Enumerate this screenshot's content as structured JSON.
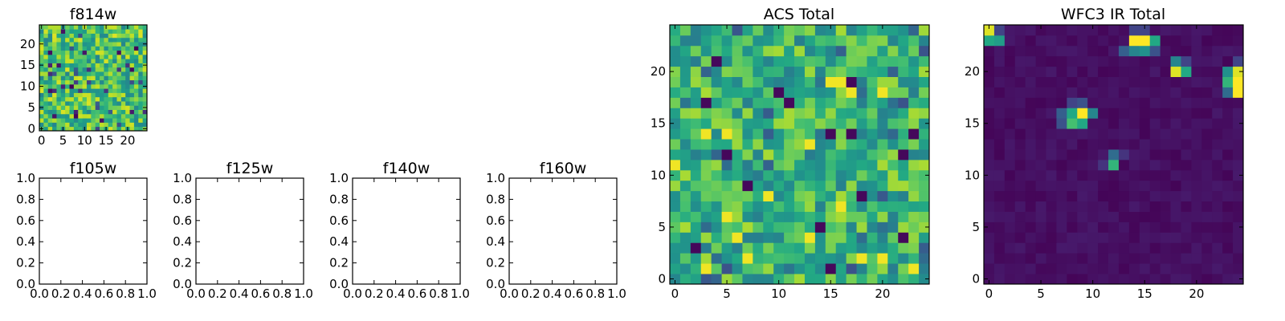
{
  "panels": {
    "f814w": {
      "title": "f814w"
    },
    "f105w": {
      "title": "f105w"
    },
    "f125w": {
      "title": "f125w"
    },
    "f140w": {
      "title": "f140w"
    },
    "f160w": {
      "title": "f160w"
    },
    "acs_total": {
      "title": "ACS Total"
    },
    "wfc3_total": {
      "title": "WFC3 IR Total"
    }
  },
  "chart_data": [
    {
      "type": "heatmap",
      "id": "f814w",
      "title": "f814w",
      "grid_size": [
        25,
        25
      ],
      "xticks": [
        0,
        5,
        10,
        15,
        20
      ],
      "yticks": [
        0,
        5,
        10,
        15,
        20
      ],
      "colormap": "viridis",
      "value_note": "noise-like field, mostly mid-high (green/yellow) with scattered dark pixels"
    },
    {
      "type": "empty",
      "id": "f105w",
      "title": "f105w",
      "xlim": [
        0.0,
        1.0
      ],
      "ylim": [
        0.0,
        1.0
      ],
      "xticks": [
        "0.0",
        "0.2",
        "0.4",
        "0.6",
        "0.8",
        "1.0"
      ],
      "yticks": [
        "0.0",
        "0.2",
        "0.4",
        "0.6",
        "0.8",
        "1.0"
      ]
    },
    {
      "type": "empty",
      "id": "f125w",
      "title": "f125w",
      "xlim": [
        0.0,
        1.0
      ],
      "ylim": [
        0.0,
        1.0
      ],
      "xticks": [
        "0.0",
        "0.2",
        "0.4",
        "0.6",
        "0.8",
        "1.0"
      ],
      "yticks": [
        "0.0",
        "0.2",
        "0.4",
        "0.6",
        "0.8",
        "1.0"
      ]
    },
    {
      "type": "empty",
      "id": "f140w",
      "title": "f140w",
      "xlim": [
        0.0,
        1.0
      ],
      "ylim": [
        0.0,
        1.0
      ],
      "xticks": [
        "0.0",
        "0.2",
        "0.4",
        "0.6",
        "0.8",
        "1.0"
      ],
      "yticks": [
        "0.0",
        "0.2",
        "0.4",
        "0.6",
        "0.8",
        "1.0"
      ]
    },
    {
      "type": "empty",
      "id": "f160w",
      "title": "f160w",
      "xlim": [
        0.0,
        1.0
      ],
      "ylim": [
        0.0,
        1.0
      ],
      "xticks": [
        "0.0",
        "0.2",
        "0.4",
        "0.6",
        "0.8",
        "1.0"
      ],
      "yticks": [
        "0.0",
        "0.2",
        "0.4",
        "0.6",
        "0.8",
        "1.0"
      ]
    },
    {
      "type": "heatmap",
      "id": "acs_total",
      "title": "ACS Total",
      "grid_size": [
        25,
        25
      ],
      "xticks": [
        0,
        5,
        10,
        15,
        20
      ],
      "yticks": [
        0,
        5,
        10,
        15,
        20
      ],
      "colormap": "viridis",
      "value_note": "noise-like field, mostly green/yellow with a few dark pixels",
      "dark_pixels": [
        [
          4,
          21
        ],
        [
          10,
          18
        ],
        [
          17,
          19
        ],
        [
          3,
          17
        ],
        [
          11,
          17
        ],
        [
          15,
          14
        ],
        [
          17,
          14
        ],
        [
          23,
          14
        ],
        [
          5,
          12
        ],
        [
          22,
          12
        ],
        [
          7,
          9
        ],
        [
          18,
          8
        ],
        [
          14,
          5
        ],
        [
          22,
          4
        ],
        [
          2,
          3
        ],
        [
          15,
          1
        ]
      ],
      "bright_pixels": [
        [
          15,
          19
        ],
        [
          16,
          19
        ],
        [
          17,
          18
        ],
        [
          20,
          18
        ],
        [
          3,
          14
        ],
        [
          5,
          14
        ],
        [
          13,
          13
        ],
        [
          0,
          11
        ],
        [
          5,
          6
        ],
        [
          9,
          8
        ],
        [
          16,
          7
        ],
        [
          6,
          4
        ],
        [
          13,
          4
        ],
        [
          7,
          2
        ],
        [
          18,
          2
        ],
        [
          20,
          2
        ],
        [
          23,
          1
        ],
        [
          3,
          1
        ]
      ]
    },
    {
      "type": "heatmap",
      "id": "wfc3_total",
      "title": "WFC3 IR Total",
      "grid_size": [
        25,
        25
      ],
      "xticks": [
        0,
        5,
        10,
        15,
        20
      ],
      "yticks": [
        0,
        5,
        10,
        15,
        20
      ],
      "colormap": "viridis",
      "value_note": "dark (low) background with a few bright sources",
      "sources": [
        {
          "x": 0,
          "y": 24,
          "v": 0.95
        },
        {
          "x": 0,
          "y": 23,
          "v": 0.6
        },
        {
          "x": 1,
          "y": 23,
          "v": 0.55
        },
        {
          "x": 1,
          "y": 24,
          "v": 0.2
        },
        {
          "x": 14,
          "y": 23,
          "v": 1.0
        },
        {
          "x": 15,
          "y": 23,
          "v": 1.0
        },
        {
          "x": 16,
          "y": 23,
          "v": 0.6
        },
        {
          "x": 13,
          "y": 22,
          "v": 0.3
        },
        {
          "x": 14,
          "y": 22,
          "v": 0.45
        },
        {
          "x": 15,
          "y": 22,
          "v": 0.5
        },
        {
          "x": 16,
          "y": 22,
          "v": 0.25
        },
        {
          "x": 14,
          "y": 24,
          "v": 0.2
        },
        {
          "x": 15,
          "y": 24,
          "v": 0.2
        },
        {
          "x": 18,
          "y": 21,
          "v": 0.45
        },
        {
          "x": 18,
          "y": 20,
          "v": 0.95
        },
        {
          "x": 19,
          "y": 20,
          "v": 0.6
        },
        {
          "x": 19,
          "y": 21,
          "v": 0.2
        },
        {
          "x": 23,
          "y": 20,
          "v": 0.5
        },
        {
          "x": 24,
          "y": 20,
          "v": 0.95
        },
        {
          "x": 23,
          "y": 19,
          "v": 0.65
        },
        {
          "x": 24,
          "y": 19,
          "v": 1.0
        },
        {
          "x": 24,
          "y": 18,
          "v": 1.0
        },
        {
          "x": 23,
          "y": 18,
          "v": 0.35
        },
        {
          "x": 24,
          "y": 21,
          "v": 0.2
        },
        {
          "x": 7,
          "y": 16,
          "v": 0.3
        },
        {
          "x": 8,
          "y": 16,
          "v": 0.6
        },
        {
          "x": 9,
          "y": 16,
          "v": 1.0
        },
        {
          "x": 10,
          "y": 16,
          "v": 0.45
        },
        {
          "x": 8,
          "y": 15,
          "v": 0.7
        },
        {
          "x": 9,
          "y": 15,
          "v": 0.6
        },
        {
          "x": 7,
          "y": 15,
          "v": 0.25
        },
        {
          "x": 8,
          "y": 17,
          "v": 0.2
        },
        {
          "x": 9,
          "y": 17,
          "v": 0.25
        },
        {
          "x": 12,
          "y": 12,
          "v": 0.35
        },
        {
          "x": 12,
          "y": 11,
          "v": 0.65
        },
        {
          "x": 13,
          "y": 12,
          "v": 0.15
        },
        {
          "x": 11,
          "y": 11,
          "v": 0.15
        }
      ]
    }
  ]
}
